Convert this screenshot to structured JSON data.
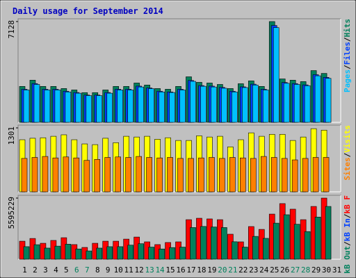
{
  "title": "Daily usage for September 2014",
  "chart_data": [
    {
      "type": "bar",
      "categories": [
        "1",
        "2",
        "3",
        "4",
        "5",
        "6",
        "7",
        "8",
        "9",
        "10",
        "11",
        "12",
        "13",
        "14",
        "15",
        "16",
        "17",
        "18",
        "19",
        "20",
        "21",
        "22",
        "23",
        "24",
        "25",
        "26",
        "27",
        "28",
        "29",
        "30",
        "31"
      ],
      "weekend_color": "#00805c",
      "weekends": [
        "6",
        "7",
        "13",
        "14",
        "20",
        "21",
        "27",
        "28"
      ],
      "ylim": [
        0,
        7128
      ],
      "yticks": [
        7128
      ],
      "separator": "/",
      "series": [
        {
          "name": "Hits",
          "color": "#00805c",
          "values": [
            2540,
            2980,
            2540,
            2540,
            2390,
            2290,
            2100,
            2100,
            2290,
            2540,
            2540,
            2780,
            2640,
            2390,
            2340,
            2540,
            3220,
            2830,
            2780,
            2680,
            2390,
            2730,
            2930,
            2540,
            7128,
            3070,
            2980,
            2880,
            3660,
            3460,
            null
          ]
        },
        {
          "name": "Files",
          "color": "#0040ff",
          "values": [
            2340,
            2740,
            2340,
            2340,
            2200,
            2110,
            1930,
            1930,
            2110,
            2340,
            2340,
            2560,
            2430,
            2200,
            2150,
            2340,
            2960,
            2600,
            2560,
            2470,
            2200,
            2510,
            2700,
            2340,
            6850,
            2820,
            2740,
            2650,
            3370,
            3180,
            null
          ]
        },
        {
          "name": "Pages",
          "color": "#00c0ff",
          "values": [
            2290,
            2680,
            2290,
            2290,
            2150,
            2060,
            1890,
            1890,
            2060,
            2290,
            2290,
            2500,
            2380,
            2150,
            2110,
            2290,
            2900,
            2550,
            2500,
            2410,
            2150,
            2460,
            2640,
            2290,
            6700,
            2760,
            2680,
            2590,
            3290,
            3110,
            null
          ]
        }
      ]
    },
    {
      "type": "bar",
      "ylim": [
        0,
        1301
      ],
      "yticks": [
        1301
      ],
      "separator": "/",
      "series": [
        {
          "name": "Visits",
          "color": "#ffff00",
          "values": [
            1060,
            1090,
            1100,
            1130,
            1160,
            1060,
            975,
            960,
            1090,
            1000,
            1130,
            1115,
            1130,
            1070,
            1100,
            1045,
            1045,
            1140,
            1115,
            1130,
            915,
            1060,
            1200,
            1130,
            1170,
            1170,
            1045,
            1115,
            1285,
            1255,
            null
          ]
        },
        {
          "name": "Sites",
          "color": "#ff8000",
          "values": [
            680,
            700,
            720,
            690,
            710,
            690,
            640,
            660,
            700,
            710,
            700,
            720,
            700,
            690,
            700,
            680,
            680,
            690,
            700,
            680,
            700,
            690,
            680,
            720,
            700,
            680,
            650,
            680,
            700,
            700,
            null
          ]
        }
      ]
    },
    {
      "type": "bar",
      "ylim": [
        0,
        5595229
      ],
      "yticks": [
        5595229
      ],
      "separator": "/",
      "series": [
        {
          "name": "kB F",
          "color": "#ff0000",
          "values": [
            1650000,
            1900000,
            1460000,
            1720000,
            1970000,
            1340000,
            1080000,
            1460000,
            1650000,
            1650000,
            1840000,
            2030000,
            1590000,
            1340000,
            1530000,
            1590000,
            3620000,
            3750000,
            3690000,
            3620000,
            2290000,
            1590000,
            2990000,
            2730000,
            4130000,
            5090000,
            4580000,
            3620000,
            4830000,
            5595229,
            null
          ]
        },
        {
          "name": "kB In",
          "color": "#0040ff",
          "values": [
            0,
            0,
            0,
            0,
            0,
            0,
            0,
            0,
            0,
            0,
            0,
            0,
            0,
            0,
            0,
            0,
            0,
            0,
            0,
            0,
            0,
            0,
            0,
            0,
            0,
            0,
            0,
            0,
            0,
            0,
            null
          ]
        },
        {
          "name": "kB Out",
          "color": "#00805c",
          "values": [
            1150000,
            1330000,
            1020000,
            1200000,
            1380000,
            940000,
            760000,
            1020000,
            1150000,
            1150000,
            1290000,
            1420000,
            1110000,
            940000,
            1070000,
            1110000,
            2900000,
            3000000,
            2950000,
            2900000,
            1600000,
            1110000,
            2090000,
            1910000,
            3300000,
            4070000,
            3200000,
            2530000,
            3860000,
            4830000,
            null
          ]
        }
      ]
    }
  ]
}
